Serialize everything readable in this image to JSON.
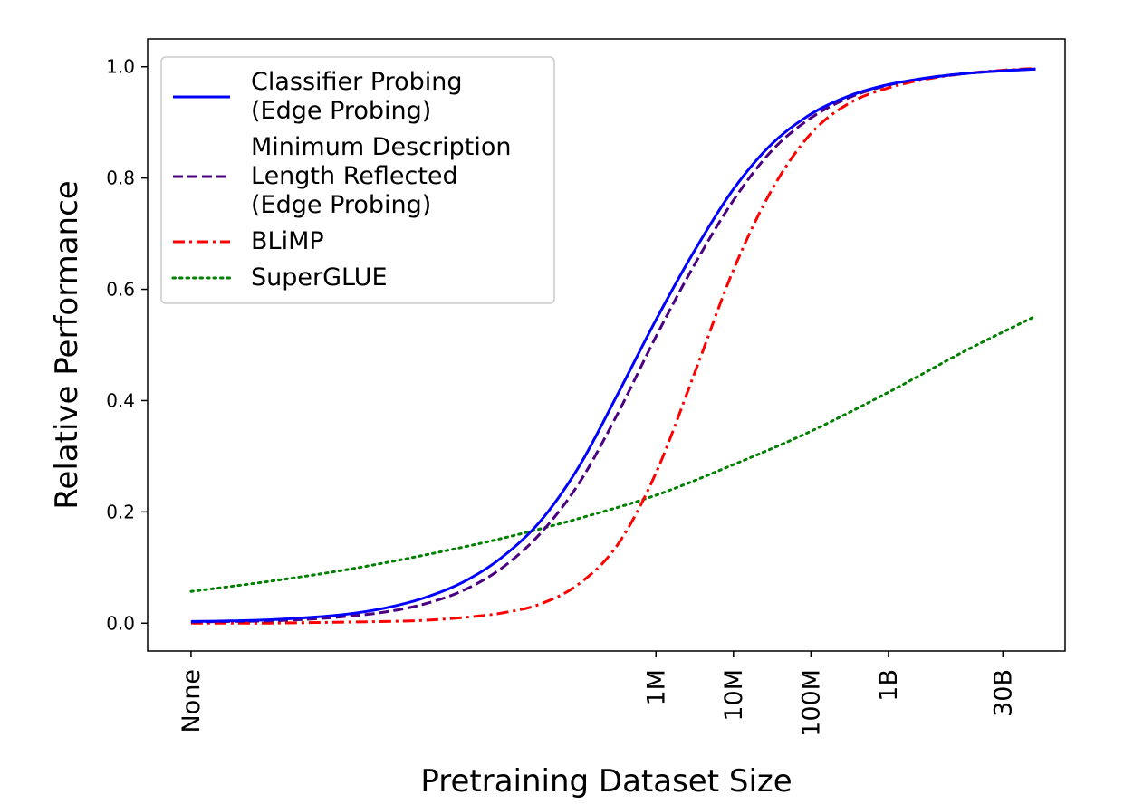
{
  "chart_data": {
    "type": "line",
    "title": "",
    "xlabel": "Pretraining Dataset Size",
    "ylabel": "Relative Performance",
    "x_ticks": [
      {
        "value": 0,
        "label": "None"
      },
      {
        "value": 6,
        "label": "1M"
      },
      {
        "value": 7,
        "label": "10M"
      },
      {
        "value": 8,
        "label": "100M"
      },
      {
        "value": 9,
        "label": "1B"
      },
      {
        "value": 10.477,
        "label": "30B"
      }
    ],
    "y_ticks": [
      {
        "value": 0.0,
        "label": "0.0"
      },
      {
        "value": 0.2,
        "label": "0.2"
      },
      {
        "value": 0.4,
        "label": "0.4"
      },
      {
        "value": 0.6,
        "label": "0.6"
      },
      {
        "value": 0.8,
        "label": "0.8"
      },
      {
        "value": 1.0,
        "label": "1.0"
      }
    ],
    "xlim": [
      -0.56,
      11.28
    ],
    "ylim": [
      -0.05,
      1.05
    ],
    "grid": false,
    "legend_position": "top-left",
    "series": [
      {
        "name": "Classifier Probing\n(Edge Probing)",
        "color": "#0000ff",
        "style": "solid",
        "x": [
          0,
          0.5,
          1,
          1.5,
          2,
          2.5,
          3,
          3.5,
          4,
          4.5,
          5,
          5.5,
          6,
          6.5,
          7,
          7.5,
          8,
          8.5,
          9,
          9.5,
          10,
          10.5,
          10.9
        ],
        "y": [
          0.003,
          0.004,
          0.006,
          0.01,
          0.016,
          0.027,
          0.045,
          0.073,
          0.117,
          0.182,
          0.28,
          0.41,
          0.545,
          0.67,
          0.78,
          0.862,
          0.915,
          0.948,
          0.968,
          0.98,
          0.988,
          0.993,
          0.996
        ]
      },
      {
        "name": "Minimum Description\nLength Reflected\n(Edge Probing)",
        "color": "#4b0082",
        "style": "dashed",
        "x": [
          0,
          0.5,
          1,
          1.5,
          2,
          2.5,
          3,
          3.5,
          4,
          4.5,
          5,
          5.5,
          6,
          6.5,
          7,
          7.5,
          8,
          8.5,
          9,
          9.5,
          10,
          10.5,
          10.9
        ],
        "y": [
          0.002,
          0.003,
          0.004,
          0.007,
          0.012,
          0.02,
          0.034,
          0.058,
          0.098,
          0.16,
          0.25,
          0.375,
          0.515,
          0.645,
          0.76,
          0.85,
          0.908,
          0.945,
          0.967,
          0.98,
          0.988,
          0.993,
          0.996
        ]
      },
      {
        "name": "BLiMP",
        "color": "#ff0000",
        "style": "dashdot",
        "x": [
          0,
          0.5,
          1,
          1.5,
          2,
          2.5,
          3,
          3.5,
          4,
          4.5,
          5,
          5.5,
          6,
          6.5,
          7,
          7.5,
          8,
          8.5,
          9,
          9.5,
          10,
          10.5,
          10.9
        ],
        "y": [
          0.0,
          0.0,
          0.0,
          0.001,
          0.002,
          0.003,
          0.005,
          0.01,
          0.018,
          0.034,
          0.07,
          0.14,
          0.27,
          0.45,
          0.635,
          0.78,
          0.88,
          0.935,
          0.962,
          0.978,
          0.988,
          0.994,
          0.997
        ]
      },
      {
        "name": "SuperGLUE",
        "color": "#008000",
        "style": "dotted",
        "x": [
          0,
          1,
          2,
          3,
          4,
          5,
          6,
          7,
          8,
          9,
          10,
          10.9
        ],
        "y": [
          0.057,
          0.075,
          0.096,
          0.122,
          0.152,
          0.188,
          0.23,
          0.285,
          0.345,
          0.415,
          0.49,
          0.552
        ]
      }
    ]
  }
}
